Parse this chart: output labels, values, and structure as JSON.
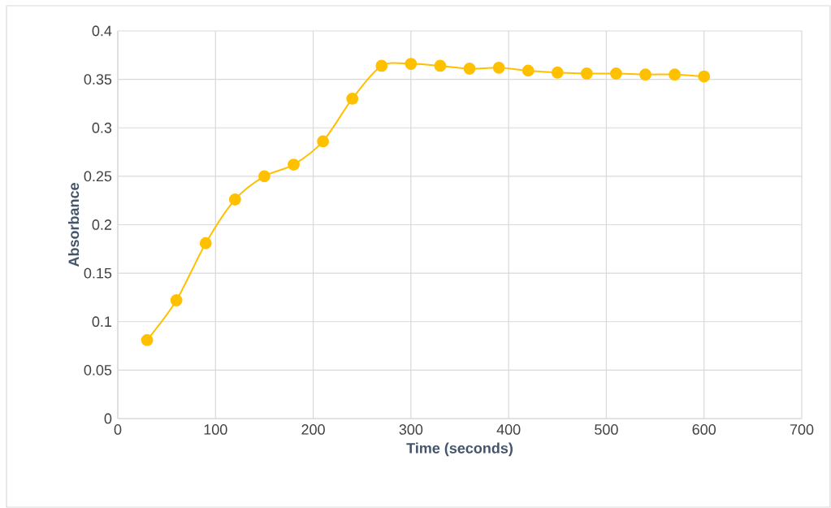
{
  "chart_data": {
    "type": "line",
    "xlabel": "Time (seconds)",
    "ylabel": "Absorbance",
    "x": [
      30,
      60,
      90,
      120,
      150,
      180,
      210,
      240,
      270,
      300,
      330,
      360,
      390,
      420,
      450,
      480,
      510,
      540,
      570,
      600
    ],
    "series": [
      {
        "color": "#ffc000",
        "values": [
          0.081,
          0.122,
          0.181,
          0.226,
          0.25,
          0.262,
          0.286,
          0.33,
          0.364,
          0.366,
          0.364,
          0.361,
          0.362,
          0.359,
          0.357,
          0.356,
          0.356,
          0.355,
          0.355,
          0.353
        ]
      }
    ],
    "xlim": [
      0,
      700
    ],
    "xticks": [
      0,
      100,
      200,
      300,
      400,
      500,
      600,
      700
    ],
    "ylim": [
      0,
      0.4
    ],
    "yticks": [
      0,
      0.05,
      0.1,
      0.15,
      0.2,
      0.25,
      0.3,
      0.35,
      0.4
    ],
    "grid": true,
    "marker": "circle",
    "line_style": "solid"
  }
}
